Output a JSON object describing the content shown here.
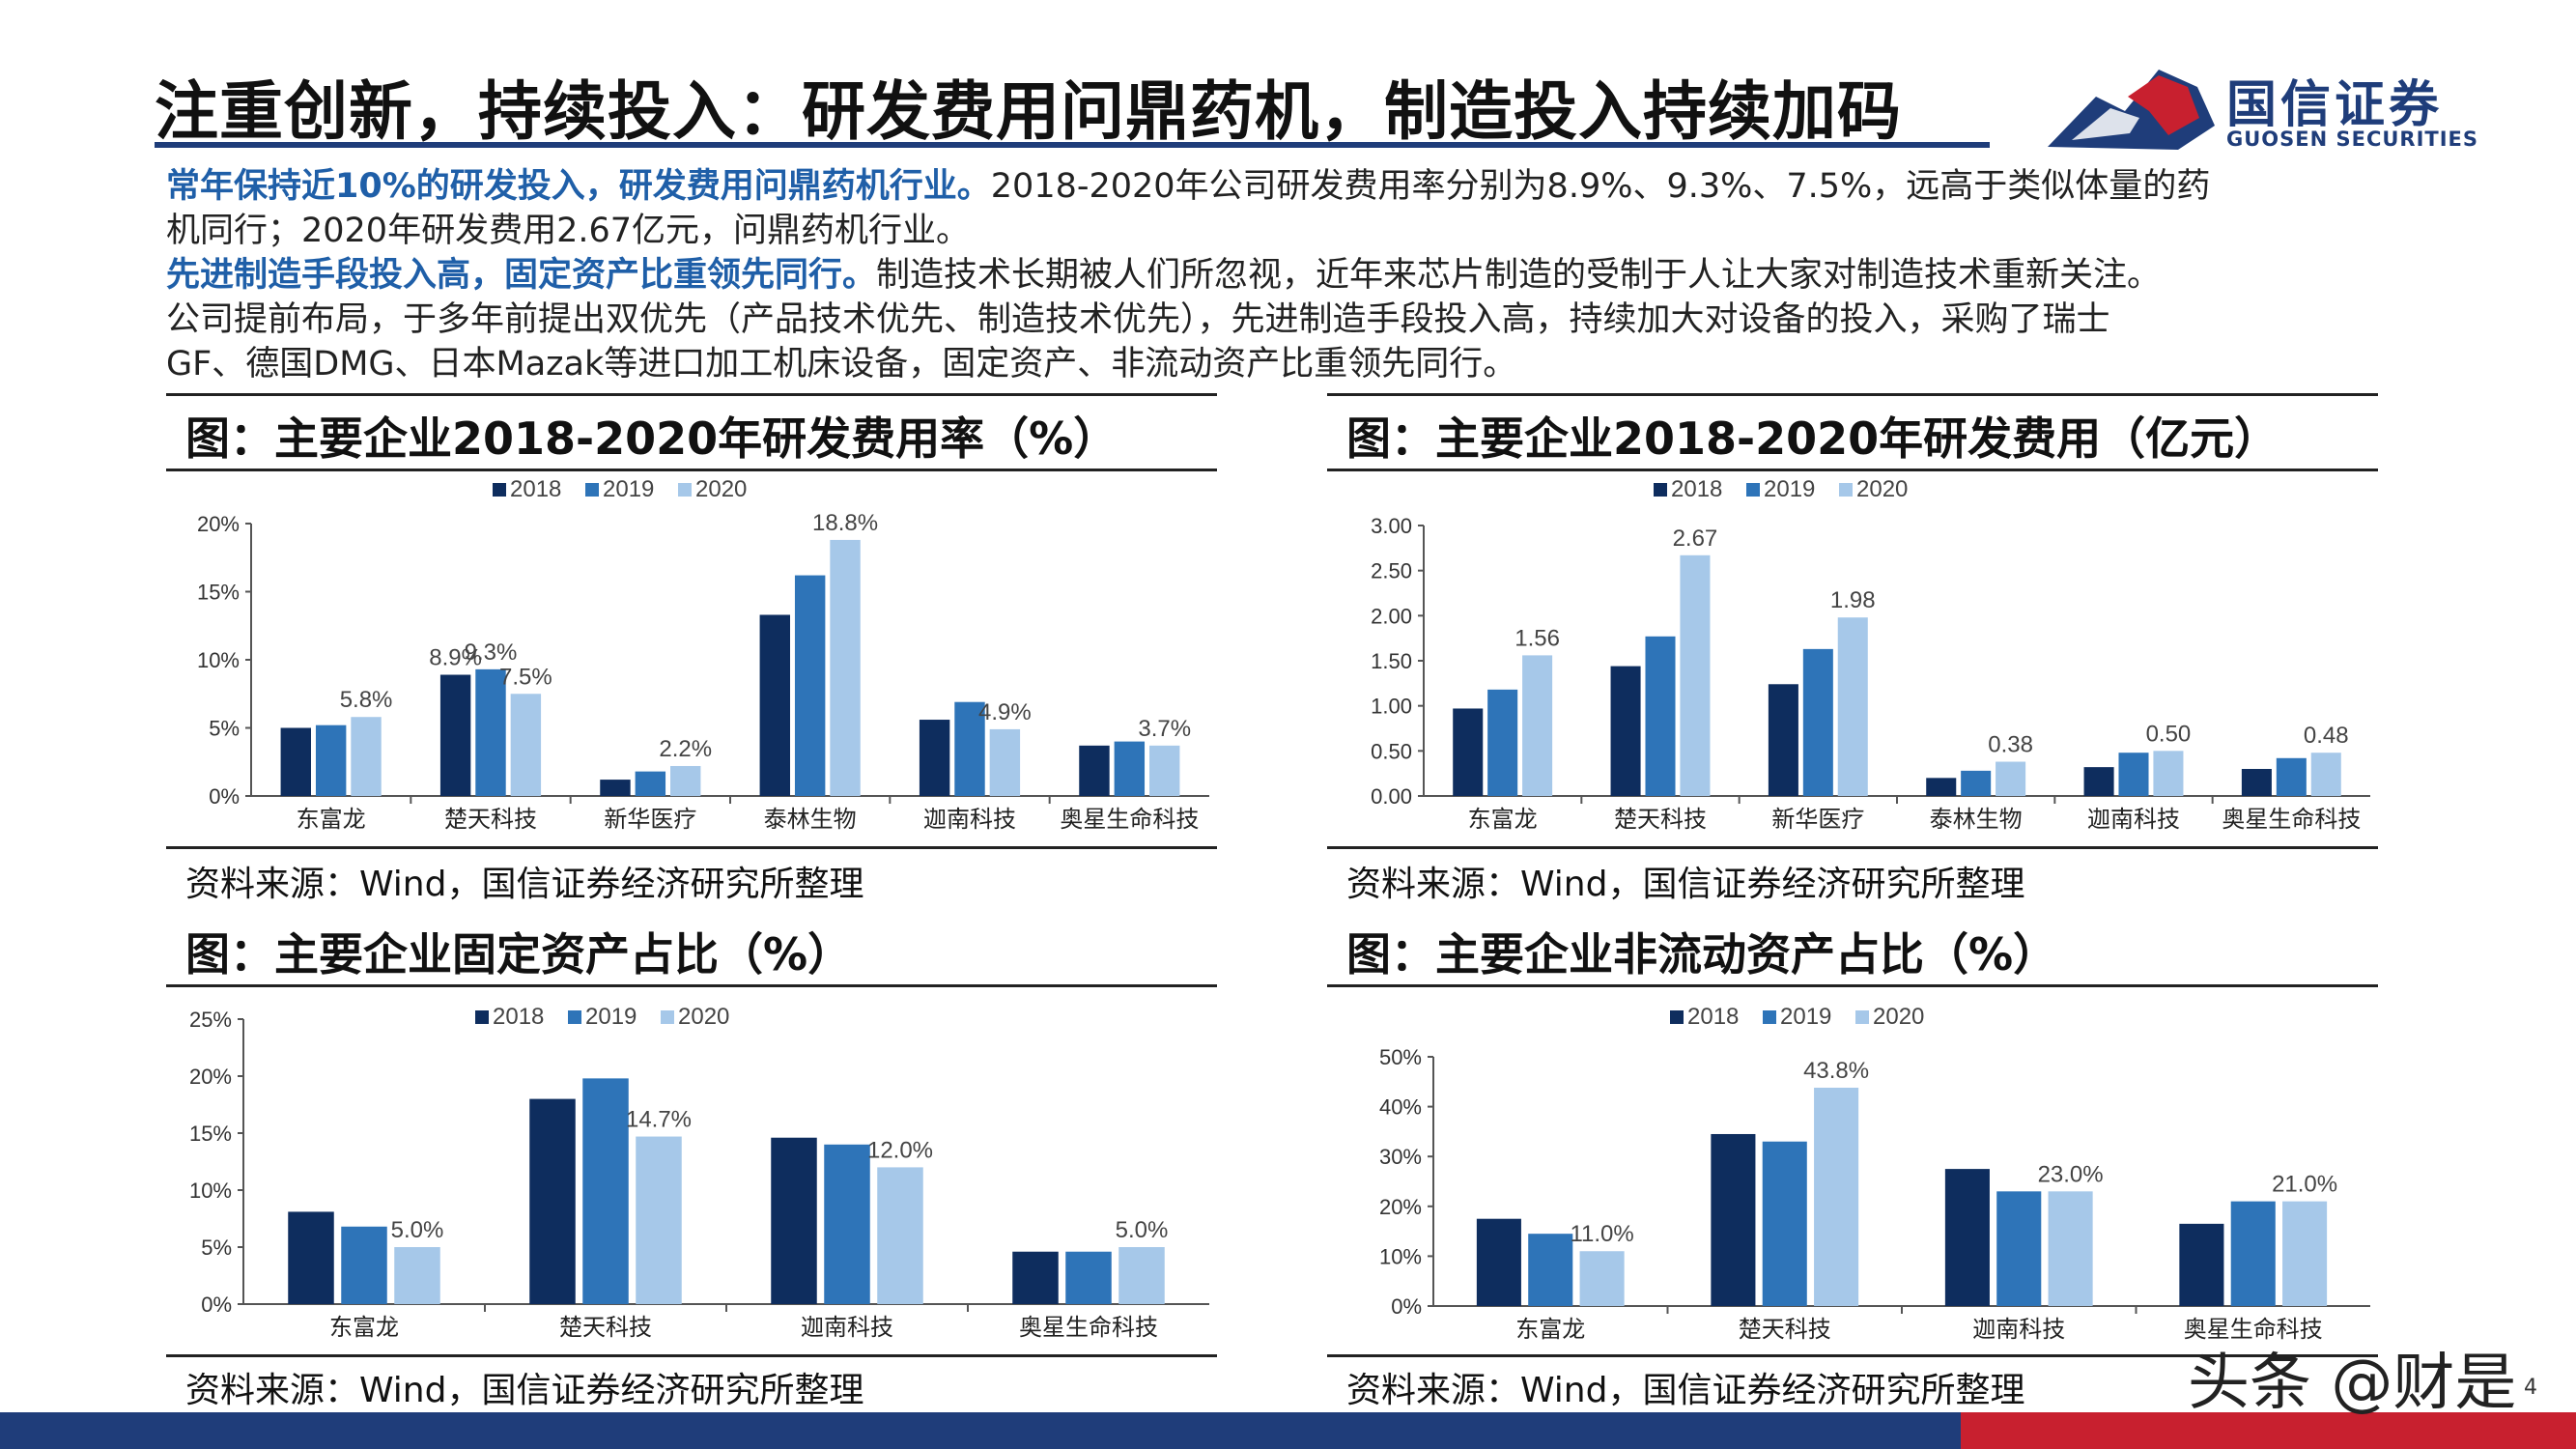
{
  "header": {
    "title": "注重创新，持续投入：研发费用问鼎药机，制造投入持续加码"
  },
  "logo": {
    "cn": "国信证券",
    "en": "GUOSEN SECURITIES"
  },
  "body_text": {
    "p1_bold": "常年保持近10%的研发投入，研发费用问鼎药机行业。",
    "p1_rest": "2018-2020年公司研发费用率分别为8.9%、9.3%、7.5%，远高于类似体量的药",
    "p1_line2": "机同行；2020年研发费用2.67亿元，问鼎药机行业。",
    "p2_bold": "先进制造手段投入高，固定资产比重领先同行。",
    "p2_rest": "制造技术长期被人们所忽视，近年来芯片制造的受制于人让大家对制造技术重新关注。",
    "p2_line2": "公司提前布局，于多年前提出双优先（产品技术优先、制造技术优先），先进制造手段投入高，持续加大对设备的投入，采购了瑞士",
    "p2_line3": "GF、德国DMG、日本Mazak等进口加工机床设备，固定资产、非流动资产比重领先同行。"
  },
  "colors": {
    "y2018": "#0e2d5e",
    "y2019": "#2e74b8",
    "y2020": "#a6c8e9",
    "brand": "#1f3d7a",
    "accent_red": "#c8202f"
  },
  "footer": {
    "watermark": "头条 @财是",
    "page": "4"
  },
  "chart_data": [
    {
      "type": "bar",
      "title": "图：主要企业2018-2020年研发费用率（%）",
      "source": "资料来源：Wind，国信证券经济研究所整理",
      "categories": [
        "东富龙",
        "楚天科技",
        "新华医疗",
        "泰林生物",
        "迦南科技",
        "奥星生命科技"
      ],
      "series": [
        {
          "name": "2018",
          "values": [
            5.0,
            8.9,
            1.2,
            13.3,
            5.6,
            3.7
          ]
        },
        {
          "name": "2019",
          "values": [
            5.2,
            9.3,
            1.8,
            16.2,
            6.9,
            4.0
          ]
        },
        {
          "name": "2020",
          "values": [
            5.8,
            7.5,
            2.2,
            18.8,
            4.9,
            3.7
          ]
        }
      ],
      "data_labels": [
        {
          "cat": 0,
          "series": 2,
          "text": "5.8%"
        },
        {
          "cat": 1,
          "series": 0,
          "text": "8.9%"
        },
        {
          "cat": 1,
          "series": 1,
          "text": "9.3%"
        },
        {
          "cat": 1,
          "series": 2,
          "text": "7.5%"
        },
        {
          "cat": 2,
          "series": 2,
          "text": "2.2%"
        },
        {
          "cat": 3,
          "series": 2,
          "text": "18.8%"
        },
        {
          "cat": 4,
          "series": 2,
          "text": "4.9%"
        },
        {
          "cat": 5,
          "series": 2,
          "text": "3.7%"
        }
      ],
      "yticks": [
        "0%",
        "5%",
        "10%",
        "15%",
        "20%"
      ],
      "ylim": [
        0,
        20
      ],
      "legend_position": "top-center"
    },
    {
      "type": "bar",
      "title": "图：主要企业2018-2020年研发费用（亿元）",
      "source": "资料来源：Wind，国信证券经济研究所整理",
      "categories": [
        "东富龙",
        "楚天科技",
        "新华医疗",
        "泰林生物",
        "迦南科技",
        "奥星生命科技"
      ],
      "series": [
        {
          "name": "2018",
          "values": [
            0.97,
            1.44,
            1.24,
            0.2,
            0.32,
            0.3
          ]
        },
        {
          "name": "2019",
          "values": [
            1.18,
            1.77,
            1.63,
            0.28,
            0.48,
            0.42
          ]
        },
        {
          "name": "2020",
          "values": [
            1.56,
            2.67,
            1.98,
            0.38,
            0.5,
            0.48
          ]
        }
      ],
      "data_labels": [
        {
          "cat": 0,
          "series": 2,
          "text": "1.56"
        },
        {
          "cat": 1,
          "series": 2,
          "text": "2.67"
        },
        {
          "cat": 2,
          "series": 2,
          "text": "1.98"
        },
        {
          "cat": 3,
          "series": 2,
          "text": "0.38"
        },
        {
          "cat": 4,
          "series": 2,
          "text": "0.50"
        },
        {
          "cat": 5,
          "series": 2,
          "text": "0.48"
        }
      ],
      "yticks": [
        "0.00",
        "0.50",
        "1.00",
        "1.50",
        "2.00",
        "2.50",
        "3.00"
      ],
      "ylim": [
        0,
        3
      ],
      "legend_position": "top-center"
    },
    {
      "type": "bar",
      "title": "图：主要企业固定资产占比（%）",
      "source": "资料来源：Wind，国信证券经济研究所整理",
      "categories": [
        "东富龙",
        "楚天科技",
        "迦南科技",
        "奥星生命科技"
      ],
      "series": [
        {
          "name": "2018",
          "values": [
            8.1,
            18.0,
            14.6,
            4.6
          ]
        },
        {
          "name": "2019",
          "values": [
            6.8,
            19.8,
            14.0,
            4.6
          ]
        },
        {
          "name": "2020",
          "values": [
            5.0,
            14.7,
            12.0,
            5.0
          ]
        }
      ],
      "data_labels": [
        {
          "cat": 0,
          "series": 2,
          "text": "5.0%"
        },
        {
          "cat": 1,
          "series": 2,
          "text": "14.7%"
        },
        {
          "cat": 2,
          "series": 2,
          "text": "12.0%"
        },
        {
          "cat": 3,
          "series": 2,
          "text": "5.0%"
        }
      ],
      "yticks": [
        "0%",
        "5%",
        "10%",
        "15%",
        "20%",
        "25%"
      ],
      "ylim": [
        0,
        25
      ],
      "legend_position": "top-center"
    },
    {
      "type": "bar",
      "title": "图：主要企业非流动资产占比（%）",
      "source": "资料来源：Wind，国信证券经济研究所整理",
      "categories": [
        "东富龙",
        "楚天科技",
        "迦南科技",
        "奥星生命科技"
      ],
      "series": [
        {
          "name": "2018",
          "values": [
            17.5,
            34.5,
            27.5,
            16.5
          ]
        },
        {
          "name": "2019",
          "values": [
            14.5,
            33.0,
            23.0,
            21.0
          ]
        },
        {
          "name": "2020",
          "values": [
            11.0,
            43.8,
            23.0,
            21.0
          ]
        }
      ],
      "data_labels": [
        {
          "cat": 0,
          "series": 2,
          "text": "11.0%"
        },
        {
          "cat": 1,
          "series": 2,
          "text": "43.8%"
        },
        {
          "cat": 2,
          "series": 2,
          "text": "23.0%"
        },
        {
          "cat": 3,
          "series": 2,
          "text": "21.0%"
        }
      ],
      "yticks": [
        "0%",
        "10%",
        "20%",
        "30%",
        "40%",
        "50%"
      ],
      "ylim": [
        0,
        50
      ],
      "legend_position": "top-center"
    }
  ]
}
